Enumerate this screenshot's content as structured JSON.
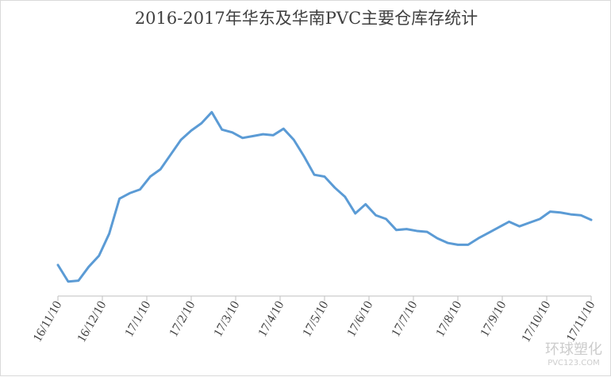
{
  "chart_data": {
    "type": "line",
    "title": "2016-2017年华东及华南PVC主要仓库存统计",
    "xlabel": "",
    "ylabel": "",
    "grid": false,
    "legend": "none",
    "line_color": "#5b9bd5",
    "x_tick_labels": [
      "16/11/10",
      "16/12/10",
      "17/1/10",
      "17/2/10",
      "17/3/10",
      "17/4/10",
      "17/5/10",
      "17/6/10",
      "17/7/10",
      "17/8/10",
      "17/9/10",
      "17/10/10",
      "17/11/10"
    ],
    "ylim": [
      0,
      100
    ],
    "series": [
      {
        "values": [
          16,
          7,
          7.5,
          15,
          21,
          33,
          52,
          55,
          57,
          64,
          68,
          76,
          84,
          89,
          93,
          99,
          89.5,
          88,
          85,
          86,
          87,
          86.5,
          90,
          84,
          75,
          65,
          64,
          58,
          53,
          44,
          49,
          43,
          41,
          35,
          35.5,
          34.5,
          34,
          30.5,
          28,
          27,
          27,
          30.5,
          33.5,
          36.5,
          39.5,
          37,
          39,
          41,
          45,
          44.5,
          43.5,
          43,
          40.5
        ]
      }
    ]
  },
  "watermark": {
    "main": "环球塑化",
    "sub": "PVC123.COM"
  }
}
